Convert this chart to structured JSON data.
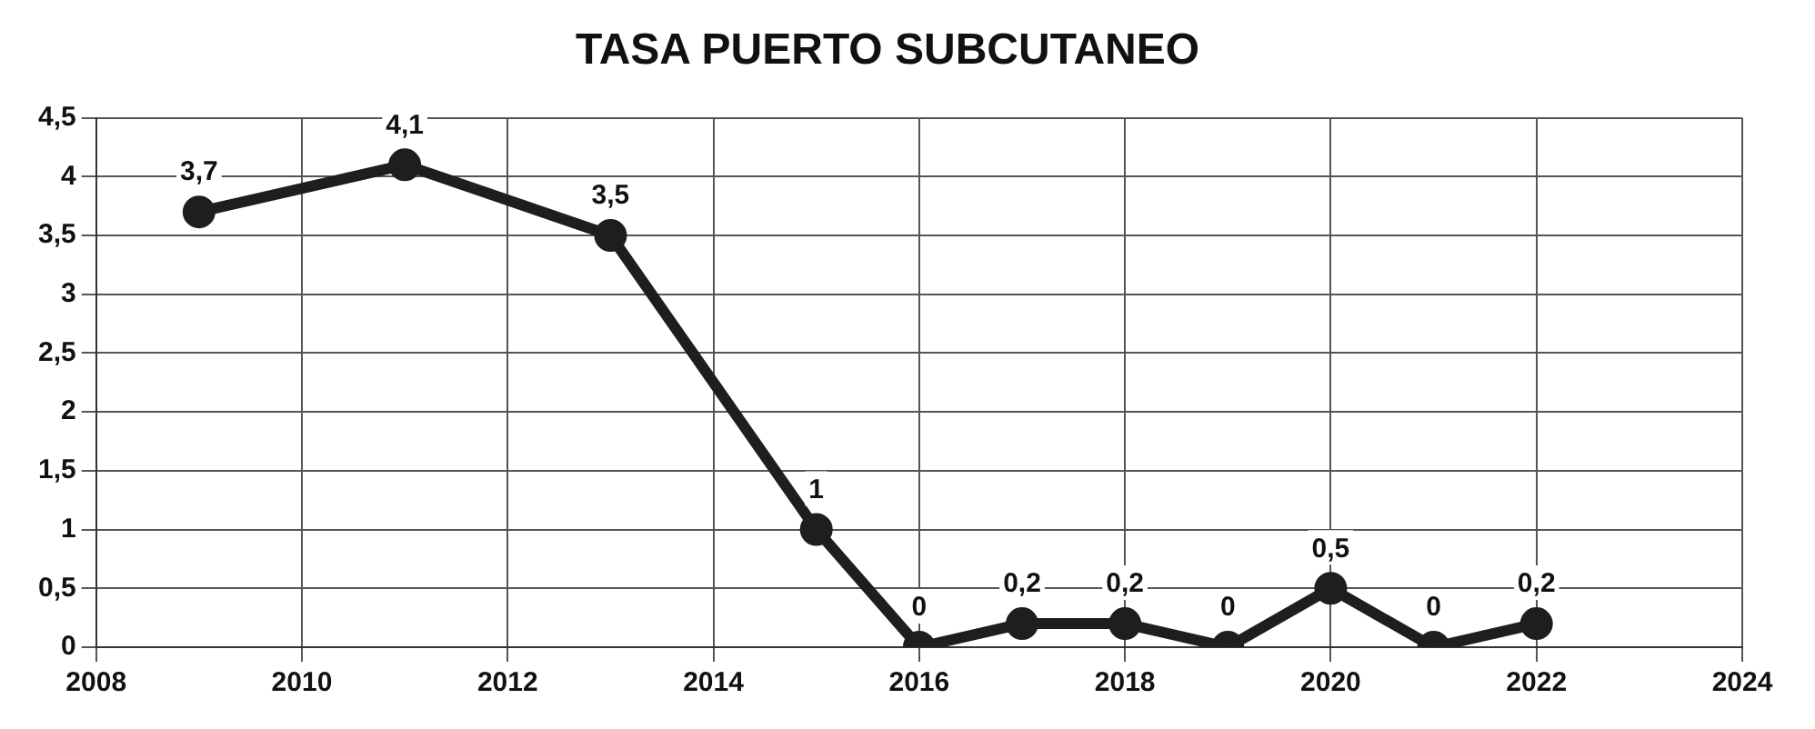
{
  "chart_data": {
    "type": "line",
    "title": "TASA PUERTO SUBCUTANEO",
    "x": [
      2009,
      2011,
      2013,
      2015,
      2016,
      2017,
      2018,
      2019,
      2020,
      2021,
      2022
    ],
    "series": [
      {
        "color": "#1e1e1e",
        "values": [
          3.7,
          4.1,
          3.5,
          1,
          0,
          0.2,
          0.2,
          0,
          0.5,
          0,
          0.2
        ],
        "value_labels": [
          "3,7",
          "4,1",
          "3,5",
          "1",
          "0",
          "0,2",
          "0,2",
          "0",
          "0,5",
          "0",
          "0,2"
        ]
      }
    ],
    "xlim": [
      2008,
      2024
    ],
    "xticks": [
      2008,
      2010,
      2012,
      2014,
      2016,
      2018,
      2020,
      2022,
      2024
    ],
    "ylim": [
      0,
      4.5
    ],
    "yticks": [
      0,
      {
        "value": 0.5,
        "label": "0,5"
      },
      1,
      {
        "value": 1.5,
        "label": "1,5"
      },
      2,
      {
        "value": 2.5,
        "label": "2,5"
      },
      3,
      {
        "value": 3.5,
        "label": "3,5"
      },
      4,
      {
        "value": 4.5,
        "label": "4,5"
      }
    ],
    "grid": true,
    "legend": false,
    "marker": "circle",
    "line_style": "solid"
  }
}
